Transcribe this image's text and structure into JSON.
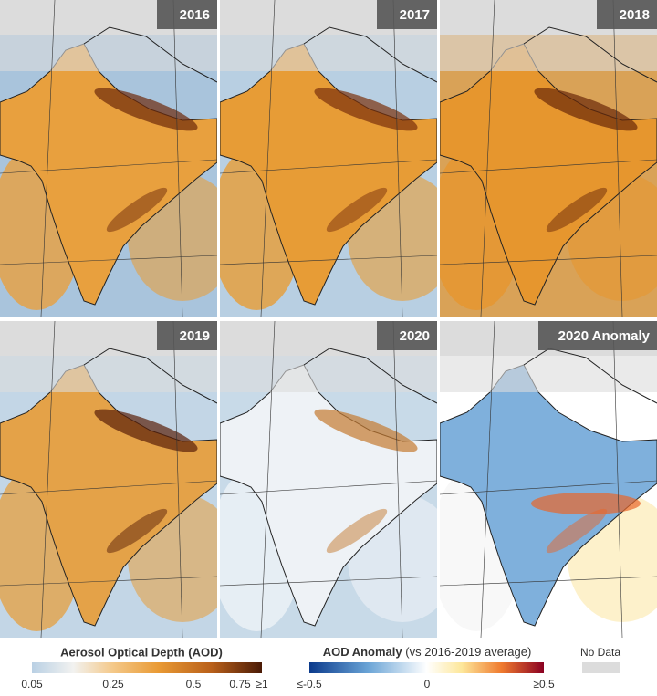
{
  "panels": [
    {
      "label": "2016"
    },
    {
      "label": "2017"
    },
    {
      "label": "2018"
    },
    {
      "label": "2019"
    },
    {
      "label": "2020"
    },
    {
      "label": "2020 Anomaly"
    }
  ],
  "legends": {
    "aod": {
      "title": "Aerosol Optical Depth (AOD)",
      "ticks": [
        "0.05",
        "0.25",
        "0.5",
        "0.75",
        "≥1"
      ]
    },
    "anomaly": {
      "title": "AOD Anomaly",
      "subtitle": "(vs 2016-2019 average)",
      "ticks": [
        "≤-0.5",
        "0",
        "≥0.5"
      ]
    },
    "no_data": {
      "label": "No Data"
    }
  }
}
